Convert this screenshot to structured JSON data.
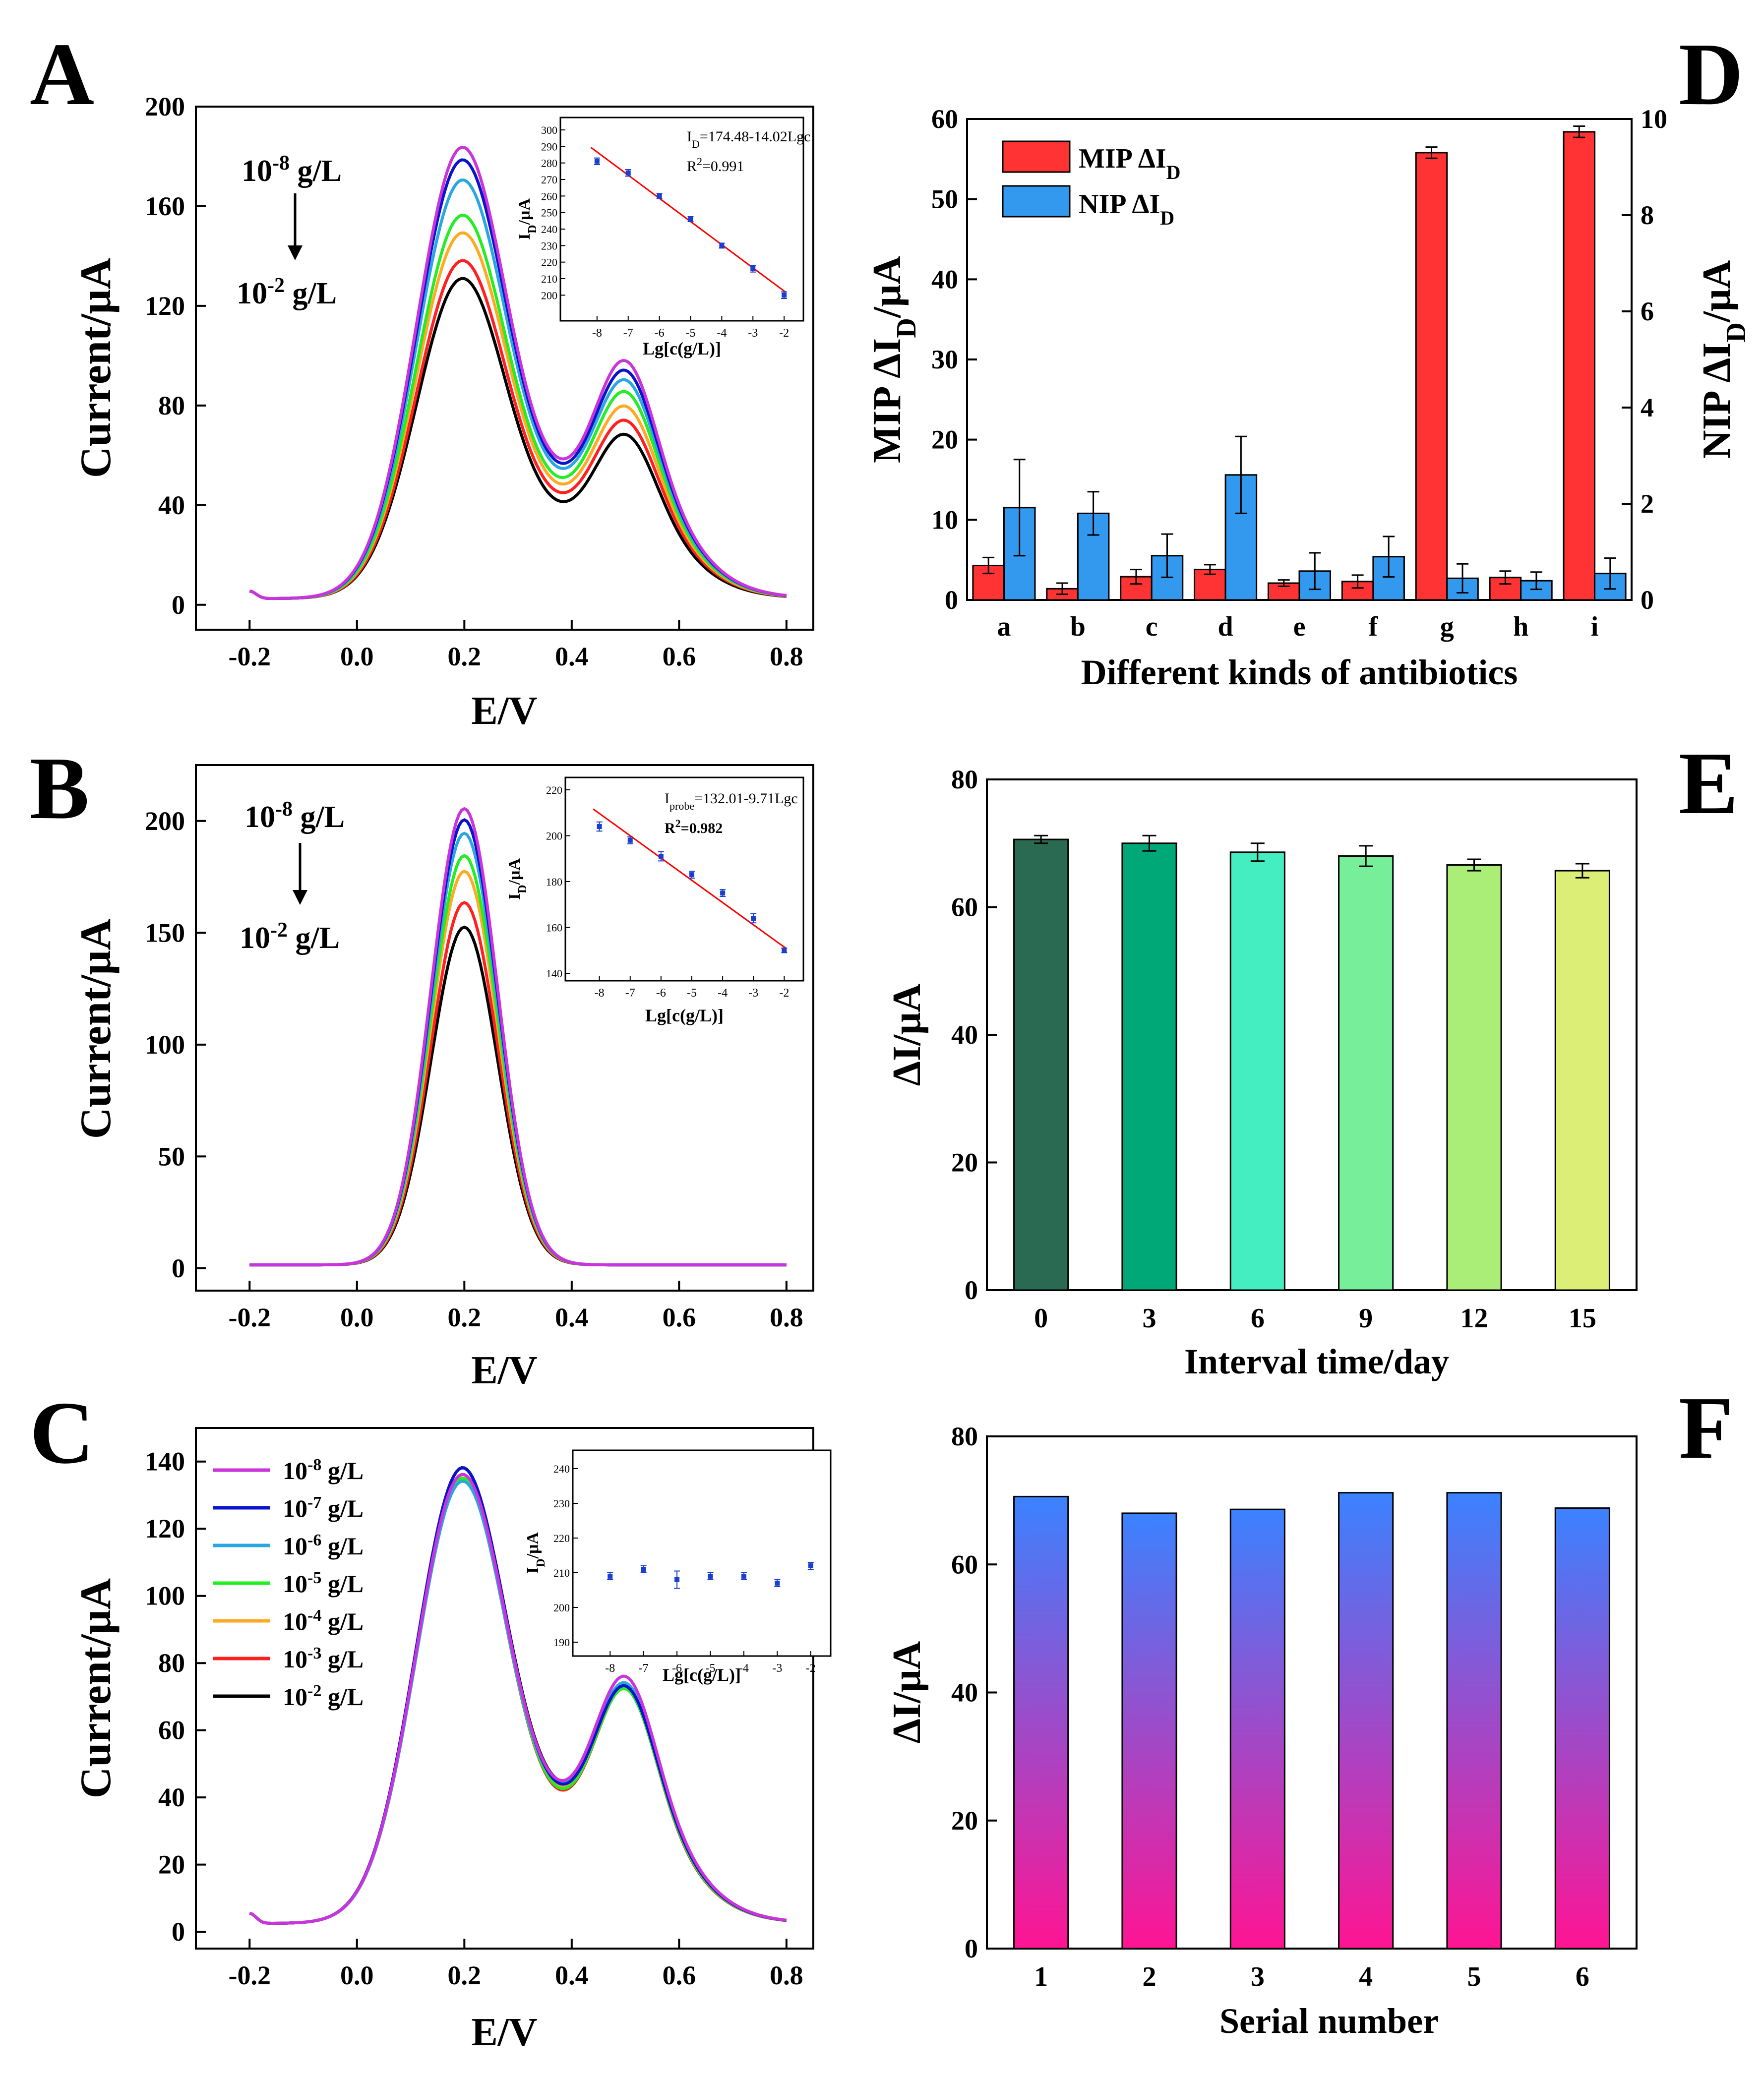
{
  "figure": {
    "panel_letters": [
      "A",
      "B",
      "C",
      "D",
      "E",
      "F"
    ],
    "colors": {
      "curves": [
        "#cc33dd",
        "#0a14cc",
        "#2aa6e0",
        "#22ee22",
        "#ffaa22",
        "#ff2020",
        "#000000"
      ],
      "inset_fit": "#ff0000",
      "inset_points": "#1a3fd0",
      "mip_bar": "#ff3333",
      "nip_bar": "#3399ee",
      "e_bars": [
        "#2a6a52",
        "#00a878",
        "#44eec0",
        "#77ee9a",
        "#aaee77",
        "#ddee77"
      ],
      "f_gradient_top": "#3b82ff",
      "f_gradient_bottom": "#ff1493"
    }
  },
  "chart_data": [
    {
      "id": "A",
      "type": "line",
      "xlabel": "E/V",
      "ylabel": "Current/μA",
      "xlim": [
        -0.3,
        0.85
      ],
      "ylim": [
        -10,
        200
      ],
      "xticks": [
        "-0.2",
        "0.0",
        "0.2",
        "0.4",
        "0.6",
        "0.8"
      ],
      "yticks": [
        "0",
        "40",
        "80",
        "120",
        "160",
        "200"
      ],
      "annotation_top": "10-8 g/L",
      "annotation_bottom": "10-2 g/L",
      "series": [
        {
          "name": "10-8 g/L",
          "peak1": 181,
          "peak2": 100,
          "valley": 64
        },
        {
          "name": "10-7 g/L",
          "peak1": 176,
          "peak2": 96,
          "valley": 62
        },
        {
          "name": "10-6 g/L",
          "peak1": 168,
          "peak2": 92,
          "valley": 60
        },
        {
          "name": "10-5 g/L",
          "peak1": 154,
          "peak2": 87,
          "valley": 56
        },
        {
          "name": "10-4 g/L",
          "peak1": 147,
          "peak2": 81,
          "valley": 53
        },
        {
          "name": "10-3 g/L",
          "peak1": 136,
          "peak2": 75,
          "valley": 49
        },
        {
          "name": "10-2 g/L",
          "peak1": 129,
          "peak2": 69,
          "valley": 44
        }
      ],
      "inset": {
        "xlabel": "Lg[c(g/L)]",
        "ylabel": "ID/μA",
        "xlim": [
          -8.3,
          -1.7
        ],
        "ylim": [
          195,
          300
        ],
        "xticks": [
          "-8",
          "-7",
          "-6",
          "-5",
          "-4",
          "-3",
          "-2"
        ],
        "yticks": [
          "200",
          "210",
          "220",
          "230",
          "240",
          "250",
          "260",
          "270",
          "280",
          "290",
          "300"
        ],
        "equation": "ID=174.48-14.02Lgc",
        "r2": "R2=0.991",
        "x": [
          -8,
          -7,
          -6,
          -5,
          -4,
          -3,
          -2
        ],
        "y": [
          281,
          274,
          260,
          246,
          230,
          216,
          200
        ],
        "err": [
          2,
          2,
          1.5,
          1.5,
          1.5,
          2,
          2
        ],
        "fit": [
          174.48,
          -14.02
        ]
      }
    },
    {
      "id": "B",
      "type": "line",
      "xlabel": "E/V",
      "ylabel": "Current/μA",
      "xlim": [
        -0.3,
        0.85
      ],
      "ylim": [
        -10,
        225
      ],
      "xticks": [
        "-0.2",
        "0.0",
        "0.2",
        "0.4",
        "0.6",
        "0.8"
      ],
      "yticks": [
        "0",
        "50",
        "100",
        "150",
        "200"
      ],
      "annotation_top": "10-8 g/L",
      "annotation_bottom": "10-2 g/L",
      "series": [
        {
          "name": "10-8 g/L",
          "peak1": 204
        },
        {
          "name": "10-7 g/L",
          "peak1": 199
        },
        {
          "name": "10-6 g/L",
          "peak1": 193
        },
        {
          "name": "10-5 g/L",
          "peak1": 183
        },
        {
          "name": "10-4 g/L",
          "peak1": 176
        },
        {
          "name": "10-3 g/L",
          "peak1": 162
        },
        {
          "name": "10-2 g/L",
          "peak1": 151
        }
      ],
      "inset": {
        "xlabel": "Lg[c(g/L)]",
        "ylabel": "ID/μA",
        "xlim": [
          -8.3,
          -1.7
        ],
        "ylim": [
          140,
          220
        ],
        "xticks": [
          "-8",
          "-7",
          "-6",
          "-5",
          "-4",
          "-3",
          "-2"
        ],
        "yticks": [
          "140",
          "160",
          "180",
          "200",
          "220"
        ],
        "equation": "Iprobe=132.01-9.71Lgc",
        "r2": "R2=0.982",
        "x": [
          -8,
          -7,
          -6,
          -5,
          -4,
          -3,
          -2
        ],
        "y": [
          204,
          198,
          191,
          183,
          175,
          164,
          150
        ],
        "err": [
          2,
          1.5,
          2,
          1.5,
          1.5,
          2,
          1
        ],
        "fit": [
          132.01,
          -9.71
        ]
      }
    },
    {
      "id": "C",
      "type": "line",
      "xlabel": "E/V",
      "ylabel": "Current/μA",
      "xlim": [
        -0.3,
        0.85
      ],
      "ylim": [
        -5,
        150
      ],
      "xticks": [
        "-0.2",
        "0.0",
        "0.2",
        "0.4",
        "0.6",
        "0.8"
      ],
      "yticks": [
        "0",
        "20",
        "40",
        "60",
        "80",
        "100",
        "120",
        "140"
      ],
      "legend": [
        "10-8 g/L",
        "10-7 g/L",
        "10-6 g/L",
        "10-5 g/L",
        "10-4 g/L",
        "10-3 g/L",
        "10-2 g/L"
      ],
      "series": [
        {
          "name": "10-8 g/L",
          "peak1": 134,
          "peak2": 77,
          "valley": 49
        },
        {
          "name": "10-7 g/L",
          "peak1": 136,
          "peak2": 74,
          "valley": 47
        },
        {
          "name": "10-6 g/L",
          "peak1": 132,
          "peak2": 75,
          "valley": 48
        },
        {
          "name": "10-5 g/L",
          "peak1": 133,
          "peak2": 73,
          "valley": 45
        },
        {
          "name": "10-4 g/L",
          "peak1": 134,
          "peak2": 74,
          "valley": 46
        },
        {
          "name": "10-3 g/L",
          "peak1": 133,
          "peak2": 73,
          "valley": 44
        },
        {
          "name": "10-2 g/L",
          "peak1": 136,
          "peak2": 74,
          "valley": 49
        }
      ],
      "inset": {
        "xlabel": "Lg[c(g/L)]",
        "ylabel": "ID/μA",
        "xlim": [
          -8.3,
          -1.7
        ],
        "ylim": [
          190,
          240
        ],
        "xticks": [
          "-8",
          "-7",
          "-6",
          "-5",
          "-4",
          "-3",
          "-2"
        ],
        "yticks": [
          "190",
          "200",
          "210",
          "220",
          "230",
          "240"
        ],
        "x": [
          -8,
          -7,
          -6,
          -5,
          -4,
          -3,
          -2
        ],
        "y": [
          209,
          211,
          208,
          209,
          209,
          207,
          212
        ],
        "err": [
          1,
          1,
          2.5,
          1,
          1,
          1,
          1
        ]
      }
    },
    {
      "id": "D",
      "type": "bar",
      "xlabel": "Different kinds of  antibiotics",
      "ylabel": "MIP ΔID/μA",
      "ylabel2": "NIP ΔID/μA",
      "ylim": [
        0,
        60
      ],
      "ylim2": [
        0,
        10
      ],
      "yticks": [
        "0",
        "10",
        "20",
        "30",
        "40",
        "50",
        "60"
      ],
      "yticks2": [
        "0",
        "2",
        "4",
        "6",
        "8",
        "10"
      ],
      "categories": [
        "a",
        "b",
        "c",
        "d",
        "e",
        "f",
        "g",
        "h",
        "i"
      ],
      "series": [
        {
          "name": "MIP ΔID",
          "axis": "left",
          "values": [
            4.3,
            1.4,
            2.9,
            3.8,
            2.1,
            2.3,
            55.8,
            2.8,
            58.4
          ],
          "errors": [
            1.0,
            0.7,
            0.9,
            0.6,
            0.4,
            0.8,
            0.7,
            0.8,
            0.7
          ]
        },
        {
          "name": "NIP ΔID",
          "axis": "right",
          "values": [
            1.92,
            1.8,
            0.92,
            2.6,
            0.6,
            0.9,
            0.45,
            0.4,
            0.55
          ],
          "errors": [
            1.0,
            0.45,
            0.45,
            0.8,
            0.38,
            0.42,
            0.3,
            0.18,
            0.32
          ]
        }
      ],
      "legend": [
        "MIP ΔID",
        "NIP ΔID"
      ]
    },
    {
      "id": "E",
      "type": "bar",
      "xlabel": "Interval time/day",
      "ylabel": "ΔI/μA",
      "ylim": [
        0,
        80
      ],
      "yticks": [
        "0",
        "20",
        "40",
        "60",
        "80"
      ],
      "categories": [
        "0",
        "3",
        "6",
        "9",
        "12",
        "15"
      ],
      "values": [
        70.6,
        70.0,
        68.6,
        68.0,
        66.6,
        65.7
      ],
      "errors": [
        0.6,
        1.2,
        1.4,
        1.6,
        0.9,
        1.1
      ]
    },
    {
      "id": "F",
      "type": "bar",
      "xlabel": "Serial number",
      "ylabel": "ΔI/μA",
      "ylim": [
        0,
        80
      ],
      "yticks": [
        "0",
        "20",
        "40",
        "60",
        "80"
      ],
      "categories": [
        "1",
        "2",
        "3",
        "4",
        "5",
        "6"
      ],
      "values": [
        70.6,
        68.0,
        68.6,
        71.2,
        71.2,
        68.8
      ]
    }
  ]
}
